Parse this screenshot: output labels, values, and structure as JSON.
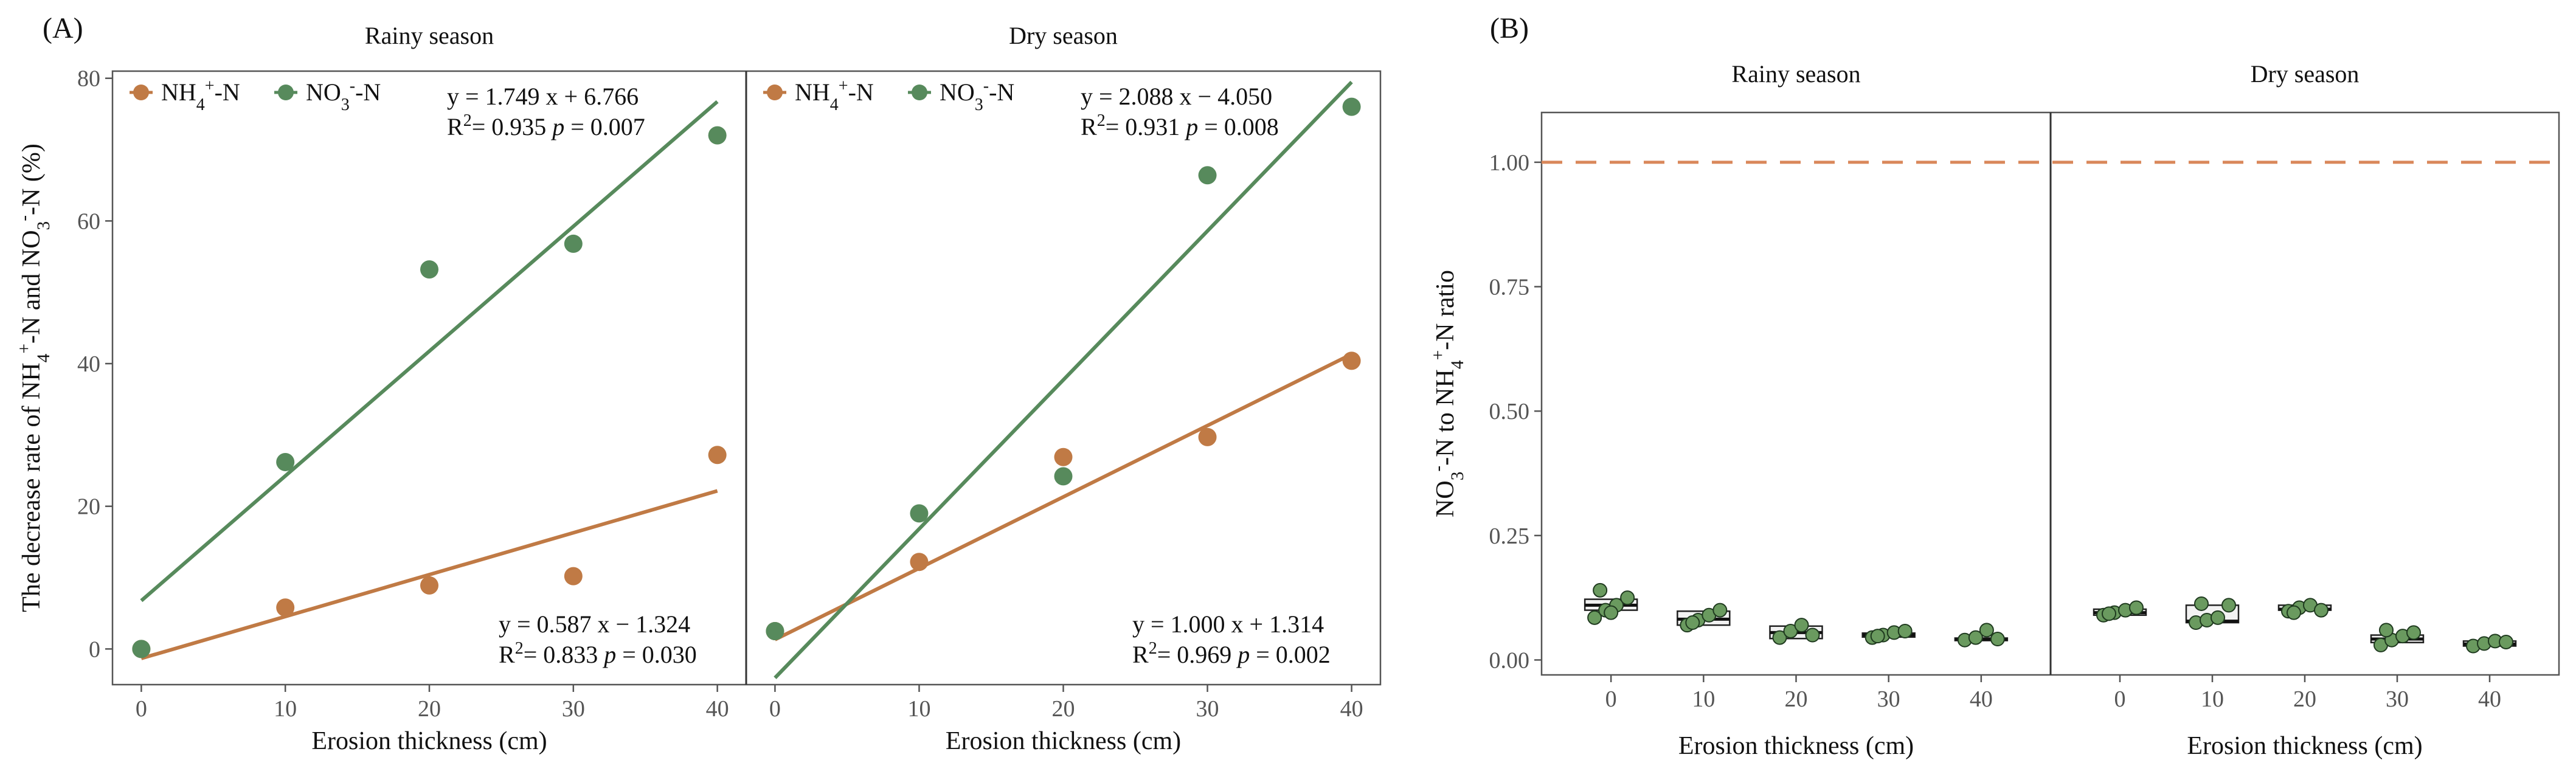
{
  "colors": {
    "nh4": "#c07a45",
    "no3": "#578a5c",
    "refline": "#d9875a",
    "box_fill": "#f2f2f2",
    "point_fill": "#6a9a5f"
  },
  "chart_data": [
    {
      "panel_label": "(A)",
      "type": "scatter",
      "ylabel_parts": [
        "The decrease rate of NH",
        "4",
        "+",
        "-N and NO",
        "3",
        "-",
        "-N (%)"
      ],
      "xlabel": "Erosion thickness (cm)",
      "xlim": [
        -2,
        42
      ],
      "ylim": [
        -5,
        81
      ],
      "xticks": [
        "0",
        "10",
        "20",
        "30",
        "40"
      ],
      "yticks": [
        "0",
        "20",
        "40",
        "60",
        "80"
      ],
      "legend": [
        {
          "key": "nh4",
          "base": "NH",
          "sub": "4",
          "sup": "+",
          "tail": "-N"
        },
        {
          "key": "no3",
          "base": "NO",
          "sub": "3",
          "sup": "-",
          "tail": "-N"
        }
      ],
      "facets": [
        {
          "strip": "Rainy season",
          "series": [
            {
              "key": "nh4",
              "x": [
                0,
                10,
                20,
                30,
                40
              ],
              "y": [
                0,
                5.8,
                8.9,
                10.2,
                27.2
              ],
              "fit": {
                "slope": 0.587,
                "intercept": -1.324
              }
            },
            {
              "key": "no3",
              "x": [
                0,
                10,
                20,
                30,
                40
              ],
              "y": [
                0,
                26.2,
                53.2,
                56.8,
                72.0
              ],
              "fit": {
                "slope": 1.749,
                "intercept": 6.766
              }
            }
          ],
          "equations": [
            {
              "key": "no3",
              "pos": "top",
              "line1": "y = 1.749 x + 6.766",
              "r2": "= 0.935",
              "p": "= 0.007"
            },
            {
              "key": "nh4",
              "pos": "bottom",
              "line1": "y = 0.587 x − 1.324",
              "r2": "= 0.833",
              "p": "= 0.030"
            }
          ]
        },
        {
          "strip": "Dry season",
          "series": [
            {
              "key": "nh4",
              "x": [
                0,
                10,
                20,
                30,
                40
              ],
              "y": [
                2.5,
                12.2,
                26.9,
                29.7,
                40.4
              ],
              "fit": {
                "slope": 1.0,
                "intercept": 1.314
              }
            },
            {
              "key": "no3",
              "x": [
                0,
                10,
                20,
                30,
                40
              ],
              "y": [
                2.5,
                19.0,
                24.2,
                66.4,
                76.0
              ],
              "fit": {
                "slope": 2.088,
                "intercept": -4.05
              }
            }
          ],
          "equations": [
            {
              "key": "no3",
              "pos": "top",
              "line1": "y = 2.088 x − 4.050",
              "r2": "= 0.931",
              "p": "= 0.008"
            },
            {
              "key": "nh4",
              "pos": "bottom",
              "line1": "y = 1.000 x + 1.314",
              "r2": "= 0.969",
              "p": "= 0.002"
            }
          ]
        }
      ]
    },
    {
      "panel_label": "(B)",
      "type": "box",
      "ylabel_parts": [
        "NO",
        "3",
        "-",
        "-N to NH",
        "4",
        "+",
        "-N ratio"
      ],
      "xlabel": "Erosion thickness (cm)",
      "ylim": [
        -0.03,
        1.1
      ],
      "yticks": [
        "0.00",
        "0.25",
        "0.50",
        "0.75",
        "1.00"
      ],
      "reference_line": 1.0,
      "categories": [
        "0",
        "10",
        "20",
        "30",
        "40"
      ],
      "facets": [
        {
          "strip": "Rainy season",
          "boxes": [
            {
              "q1": 0.1,
              "median": 0.11,
              "q3": 0.122,
              "points": [
                0.085,
                0.1,
                0.11,
                0.125,
                0.14,
                0.095
              ]
            },
            {
              "q1": 0.07,
              "median": 0.082,
              "q3": 0.098,
              "points": [
                0.07,
                0.08,
                0.09,
                0.1,
                0.075
              ]
            },
            {
              "q1": 0.043,
              "median": 0.055,
              "q3": 0.068,
              "points": [
                0.045,
                0.058,
                0.07,
                0.05
              ]
            },
            {
              "q1": 0.046,
              "median": 0.05,
              "q3": 0.054,
              "points": [
                0.045,
                0.05,
                0.055,
                0.058,
                0.048
              ]
            },
            {
              "q1": 0.039,
              "median": 0.041,
              "q3": 0.044,
              "points": [
                0.04,
                0.045,
                0.06,
                0.042
              ]
            }
          ]
        },
        {
          "strip": "Dry season",
          "boxes": [
            {
              "q1": 0.09,
              "median": 0.095,
              "q3": 0.102,
              "points": [
                0.09,
                0.095,
                0.1,
                0.105,
                0.093
              ]
            },
            {
              "q1": 0.075,
              "median": 0.078,
              "q3": 0.11,
              "points": [
                0.075,
                0.08,
                0.085,
                0.11,
                0.113
              ]
            },
            {
              "q1": 0.1,
              "median": 0.102,
              "q3": 0.11,
              "points": [
                0.098,
                0.105,
                0.11,
                0.1,
                0.095
              ]
            },
            {
              "q1": 0.035,
              "median": 0.042,
              "q3": 0.05,
              "points": [
                0.03,
                0.04,
                0.048,
                0.055,
                0.06
              ]
            },
            {
              "q1": 0.028,
              "median": 0.032,
              "q3": 0.038,
              "points": [
                0.028,
                0.033,
                0.038,
                0.036
              ]
            }
          ]
        }
      ]
    }
  ]
}
